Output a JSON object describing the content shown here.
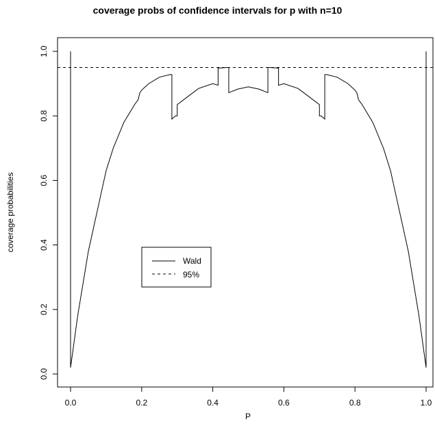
{
  "chart_data": {
    "type": "line",
    "title": "coverage probs of confidence intervals for p with n=10",
    "xlabel": "P",
    "ylabel": "coverage probabilities",
    "xlim": [
      0.0,
      1.0
    ],
    "ylim": [
      0.0,
      1.0
    ],
    "x_ticks": [
      "0.0",
      "0.2",
      "0.4",
      "0.6",
      "0.8",
      "1.0"
    ],
    "y_ticks": [
      "0.0",
      "0.2",
      "0.4",
      "0.6",
      "0.8",
      "1.0"
    ],
    "grid": false,
    "legend_position": "center-left",
    "series": [
      {
        "name": "Wald",
        "style": "solid",
        "x": [
          0.0,
          0.0,
          0.02,
          0.05,
          0.08,
          0.1,
          0.12,
          0.15,
          0.18,
          0.19,
          0.195,
          0.2,
          0.22,
          0.25,
          0.28,
          0.285,
          0.285,
          0.295,
          0.3,
          0.3,
          0.33,
          0.36,
          0.4,
          0.415,
          0.415,
          0.44,
          0.445,
          0.445,
          0.47,
          0.5,
          0.53,
          0.555,
          0.555,
          0.56,
          0.585,
          0.585,
          0.6,
          0.64,
          0.67,
          0.7,
          0.7,
          0.705,
          0.715,
          0.715,
          0.72,
          0.75,
          0.78,
          0.8,
          0.805,
          0.81,
          0.82,
          0.85,
          0.88,
          0.9,
          0.92,
          0.95,
          0.98,
          1.0,
          1.0
        ],
        "y": [
          1.0,
          0.02,
          0.18,
          0.38,
          0.53,
          0.63,
          0.7,
          0.78,
          0.835,
          0.85,
          0.872,
          0.88,
          0.9,
          0.92,
          0.928,
          0.928,
          0.79,
          0.8,
          0.8,
          0.835,
          0.86,
          0.885,
          0.9,
          0.895,
          0.948,
          0.95,
          0.95,
          0.872,
          0.883,
          0.89,
          0.883,
          0.872,
          0.95,
          0.95,
          0.948,
          0.895,
          0.9,
          0.885,
          0.86,
          0.835,
          0.8,
          0.8,
          0.79,
          0.928,
          0.928,
          0.92,
          0.9,
          0.88,
          0.872,
          0.85,
          0.835,
          0.78,
          0.7,
          0.63,
          0.53,
          0.38,
          0.18,
          0.02,
          1.0
        ]
      },
      {
        "name": "95%",
        "style": "dashed",
        "x": [
          0.0,
          1.0
        ],
        "y": [
          0.95,
          0.95
        ]
      }
    ]
  }
}
